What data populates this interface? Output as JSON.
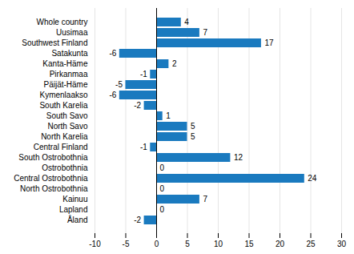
{
  "chart_data": {
    "type": "bar",
    "orientation": "horizontal",
    "categories": [
      "Whole country",
      "Uusimaa",
      "Southwest Finland",
      "Satakunta",
      "Kanta-Häme",
      "Pirkanmaa",
      "Päijät-Häme",
      "Kymenlaakso",
      "South Karelia",
      "South Savo",
      "North Savo",
      "North Karelia",
      "Central Finland",
      "South Ostrobothnia",
      "Ostrobothnia",
      "Central Ostrobothnia",
      "North Ostrobothnia",
      "Kainuu",
      "Lapland",
      "Åland"
    ],
    "values": [
      4,
      7,
      17,
      -6,
      2,
      -1,
      -5,
      -6,
      -2,
      1,
      5,
      5,
      -1,
      12,
      0,
      24,
      0,
      7,
      0,
      -2
    ],
    "color": "#1a7abf",
    "xlim": [
      -10,
      30
    ],
    "xticks": [
      -10,
      -5,
      0,
      5,
      10,
      15,
      20,
      25,
      30
    ],
    "grid": true,
    "data_labels": true
  }
}
